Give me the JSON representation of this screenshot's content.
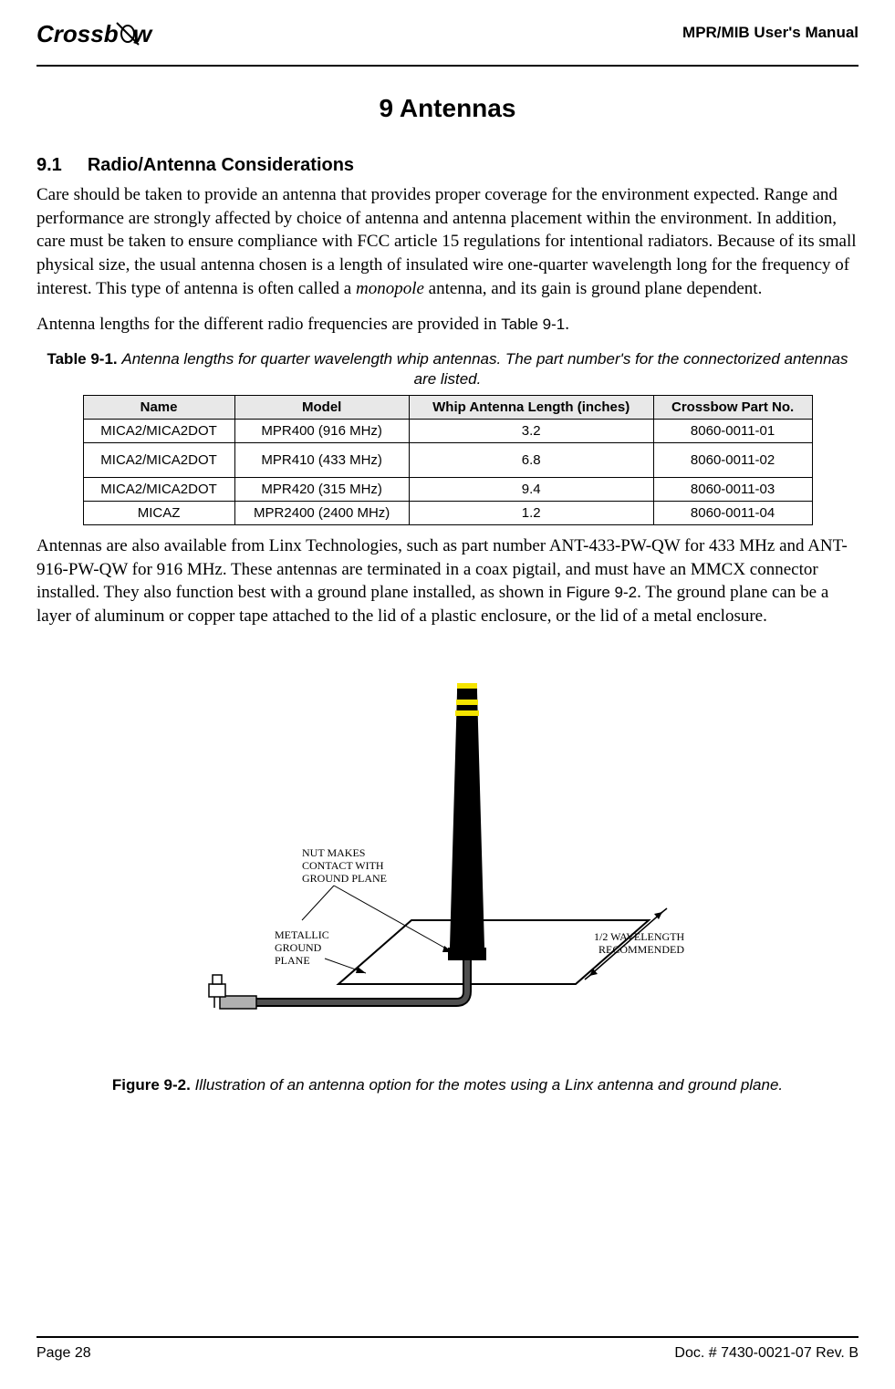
{
  "header": {
    "logo_text": "Crossb",
    "manual_title": "MPR/MIB User's Manual"
  },
  "chapter": {
    "title": "9  Antennas"
  },
  "section_9_1": {
    "heading_number": "9.1",
    "heading_text": "Radio/Antenna Considerations",
    "para1a": "Care should be taken to provide an antenna that provides proper coverage for the environment expected. Range and performance are strongly affected by choice of antenna and antenna placement within the environment. In addition, care must be taken to ensure compliance with FCC article 15 regulations for intentional radiators. Because of its small physical size, the usual antenna chosen is a length of insulated wire one-quarter wavelength long for the frequency of interest. This type of antenna is often called a ",
    "para1_italic": "monopole",
    "para1b": " antenna, and its gain is ground plane dependent.",
    "para2a": "Antenna lengths for the different radio frequencies are provided in ",
    "para2_ref": "Table 9-1",
    "para2b": "."
  },
  "table_9_1": {
    "caption_bold": "Table 9-1.",
    "caption_italic": "Antenna lengths for quarter wavelength whip antennas. The part number's for the connectorized antennas are listed.",
    "columns": [
      "Name",
      "Model",
      "Whip Antenna Length (inches)",
      "Crossbow Part No."
    ],
    "rows": [
      [
        "MICA2/MICA2DOT",
        "MPR400 (916 MHz)",
        "3.2",
        "8060-0011-01"
      ],
      [
        "MICA2/MICA2DOT",
        "MPR410 (433 MHz)",
        "6.8",
        "8060-0011-02"
      ],
      [
        "MICA2/MICA2DOT",
        "MPR420 (315 MHz)",
        "9.4",
        "8060-0011-03"
      ],
      [
        "MICAZ",
        "MPR2400 (2400 MHz)",
        "1.2",
        "8060-0011-04"
      ]
    ],
    "header_bg": "#e8e8e8"
  },
  "para3": {
    "text_a": "Antennas are also available from Linx Technologies, such as part number ANT-433-PW-QW for 433 MHz and ANT-916-PW-QW for 916 MHz. These antennas are terminated in a coax pigtail, and must have an MMCX connector installed. They also function best with a ground plane installed, as shown in ",
    "ref": "Figure 9-2",
    "text_b": ". The ground plane can be a layer of aluminum or copper tape attached to the lid of a plastic enclosure, or the lid of a metal enclosure."
  },
  "figure_9_2": {
    "labels": {
      "nut_makes": "NUT MAKES",
      "contact_with": "CONTACT WITH",
      "ground_plane_lbl": "GROUND PLANE",
      "metallic": "METALLIC",
      "ground": "GROUND",
      "plane": "PLANE",
      "half_wavelength": "1/2 WAVELENGTH",
      "recommended": "RECOMMENDED"
    },
    "colors": {
      "antenna_body": "#000000",
      "antenna_stripes": "#f5e400",
      "plane_fill": "#ffffff",
      "plane_stroke": "#000000",
      "cable": "#404040",
      "connector_fill": "#ffffff"
    },
    "caption_bold": "Figure 9-2.",
    "caption_italic": "Illustration of an antenna option for the motes using a Linx antenna and ground plane."
  },
  "footer": {
    "page": "Page 28",
    "doc": "Doc. # 7430-0021-07 Rev. B"
  }
}
